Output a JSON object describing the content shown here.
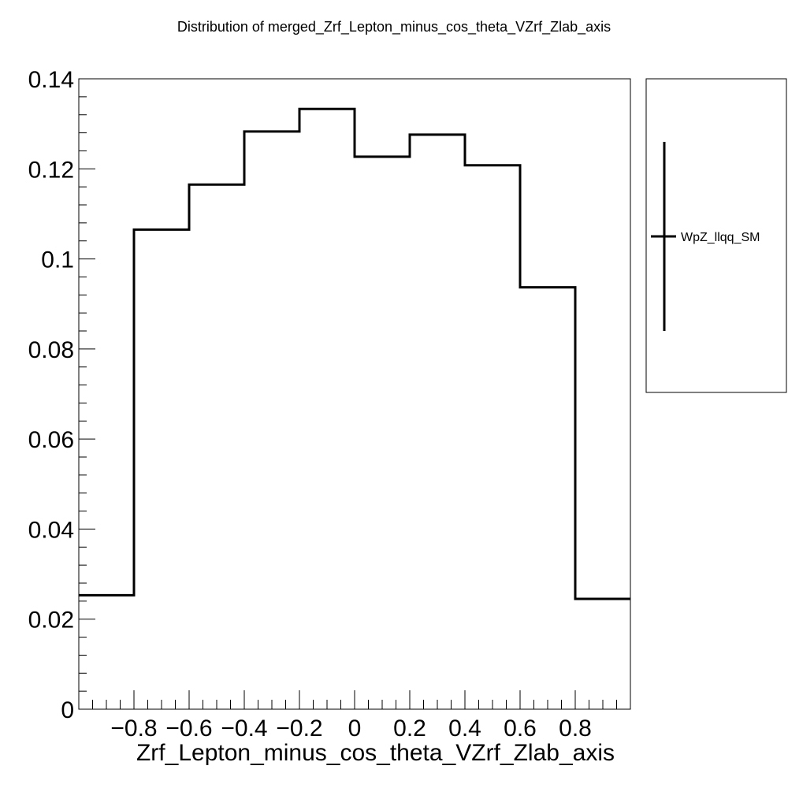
{
  "chart_data": {
    "type": "bar",
    "histogram": true,
    "title": "Distribution of merged_Zrf_Lepton_minus_cos_theta_VZrf_Zlab_axis",
    "xlabel": "Zrf_Lepton_minus_cos_theta_VZrf_Zlab_axis",
    "ylabel": "",
    "xlim": [
      -1.0,
      1.0
    ],
    "ylim": [
      0,
      0.14
    ],
    "bin_edges": [
      -1.0,
      -0.8,
      -0.6,
      -0.4,
      -0.2,
      0.0,
      0.2,
      0.4,
      0.6,
      0.8,
      1.0
    ],
    "series": [
      {
        "name": "WpZ_llqq_SM",
        "values": [
          0.0253,
          0.1065,
          0.1165,
          0.1283,
          0.1333,
          0.1227,
          0.1276,
          0.1208,
          0.0937,
          0.0245
        ]
      }
    ],
    "x_ticks": [
      {
        "value": -0.8,
        "label": "−0.8"
      },
      {
        "value": -0.6,
        "label": "−0.6"
      },
      {
        "value": -0.4,
        "label": "−0.4"
      },
      {
        "value": -0.2,
        "label": "−0.2"
      },
      {
        "value": 0.0,
        "label": "0"
      },
      {
        "value": 0.2,
        "label": "0.2"
      },
      {
        "value": 0.4,
        "label": "0.4"
      },
      {
        "value": 0.6,
        "label": "0.6"
      },
      {
        "value": 0.8,
        "label": "0.8"
      }
    ],
    "y_ticks": [
      {
        "value": 0,
        "label": "0"
      },
      {
        "value": 0.02,
        "label": "0.02"
      },
      {
        "value": 0.04,
        "label": "0.04"
      },
      {
        "value": 0.06,
        "label": "0.06"
      },
      {
        "value": 0.08,
        "label": "0.08"
      },
      {
        "value": 0.1,
        "label": "0.1"
      },
      {
        "value": 0.12,
        "label": "0.12"
      },
      {
        "value": 0.14,
        "label": "0.14"
      }
    ],
    "grid": false,
    "legend_position": "right",
    "line_color": "#000000"
  }
}
